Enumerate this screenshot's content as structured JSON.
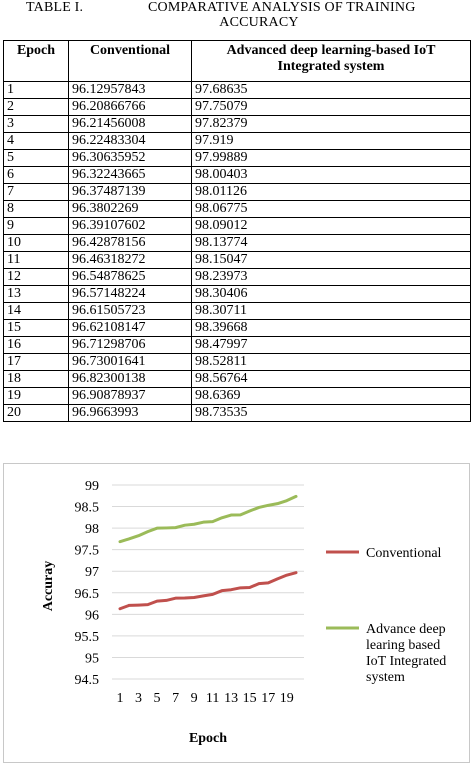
{
  "caption": {
    "table_label": "TABLE I.",
    "title_line1": "COMPARATIVE ANALYSIS OF TRAINING",
    "title_line2": "ACCURACY"
  },
  "table": {
    "headers": [
      "Epoch",
      "Conventional",
      "Advanced deep learning-based IoT Integrated system"
    ],
    "rows": [
      [
        "1",
        "96.12957843",
        "97.68635"
      ],
      [
        "2",
        "96.20866766",
        "97.75079"
      ],
      [
        "3",
        "96.21456008",
        "97.82379"
      ],
      [
        "4",
        "96.22483304",
        "97.919"
      ],
      [
        "5",
        "96.30635952",
        "97.99889"
      ],
      [
        "6",
        "96.32243665",
        "98.00403"
      ],
      [
        "7",
        "96.37487139",
        "98.01126"
      ],
      [
        "8",
        "96.3802269",
        "98.06775"
      ],
      [
        "9",
        "96.39107602",
        "98.09012"
      ],
      [
        "10",
        "96.42878156",
        "98.13774"
      ],
      [
        "11",
        "96.46318272",
        "98.15047"
      ],
      [
        "12",
        "96.54878625",
        "98.23973"
      ],
      [
        "13",
        "96.57148224",
        "98.30406"
      ],
      [
        "14",
        "96.61505723",
        "98.30711"
      ],
      [
        "15",
        "96.62108147",
        "98.39668"
      ],
      [
        "16",
        "96.71298706",
        "98.47997"
      ],
      [
        "17",
        "96.73001641",
        "98.52811"
      ],
      [
        "18",
        "96.82300138",
        "98.56764"
      ],
      [
        "19",
        "96.90878937",
        "98.6369"
      ],
      [
        "20",
        "96.9663993",
        "98.73535"
      ]
    ]
  },
  "chart_data": {
    "type": "line",
    "xlabel": "Epoch",
    "ylabel": "Accuray",
    "ylim": [
      94.5,
      99
    ],
    "yticks": [
      "94.5",
      "95",
      "95.5",
      "96",
      "96.5",
      "97",
      "97.5",
      "98",
      "98.5",
      "99"
    ],
    "x": [
      1,
      2,
      3,
      4,
      5,
      6,
      7,
      8,
      9,
      10,
      11,
      12,
      13,
      14,
      15,
      16,
      17,
      18,
      19,
      20
    ],
    "xtick_labels": [
      "1",
      "3",
      "5",
      "7",
      "9",
      "11",
      "13",
      "15",
      "17",
      "19"
    ],
    "grid": "horizontal",
    "legend_position": "right",
    "series": [
      {
        "name": "Conventional",
        "color": "#c0504d",
        "values": [
          96.12957843,
          96.20866766,
          96.21456008,
          96.22483304,
          96.30635952,
          96.32243665,
          96.37487139,
          96.3802269,
          96.39107602,
          96.42878156,
          96.46318272,
          96.54878625,
          96.57148224,
          96.61505723,
          96.62108147,
          96.71298706,
          96.73001641,
          96.82300138,
          96.90878937,
          96.9663993
        ]
      },
      {
        "name": "Advance deep learing based IoT Integrated system",
        "legend_lines": [
          "Advance deep",
          "learing based",
          "IoT Integrated",
          "system"
        ],
        "color": "#9bbb59",
        "values": [
          97.68635,
          97.75079,
          97.82379,
          97.919,
          97.99889,
          98.00403,
          98.01126,
          98.06775,
          98.09012,
          98.13774,
          98.15047,
          98.23973,
          98.30406,
          98.30711,
          98.39668,
          98.47997,
          98.52811,
          98.56764,
          98.6369,
          98.73535
        ]
      }
    ]
  }
}
